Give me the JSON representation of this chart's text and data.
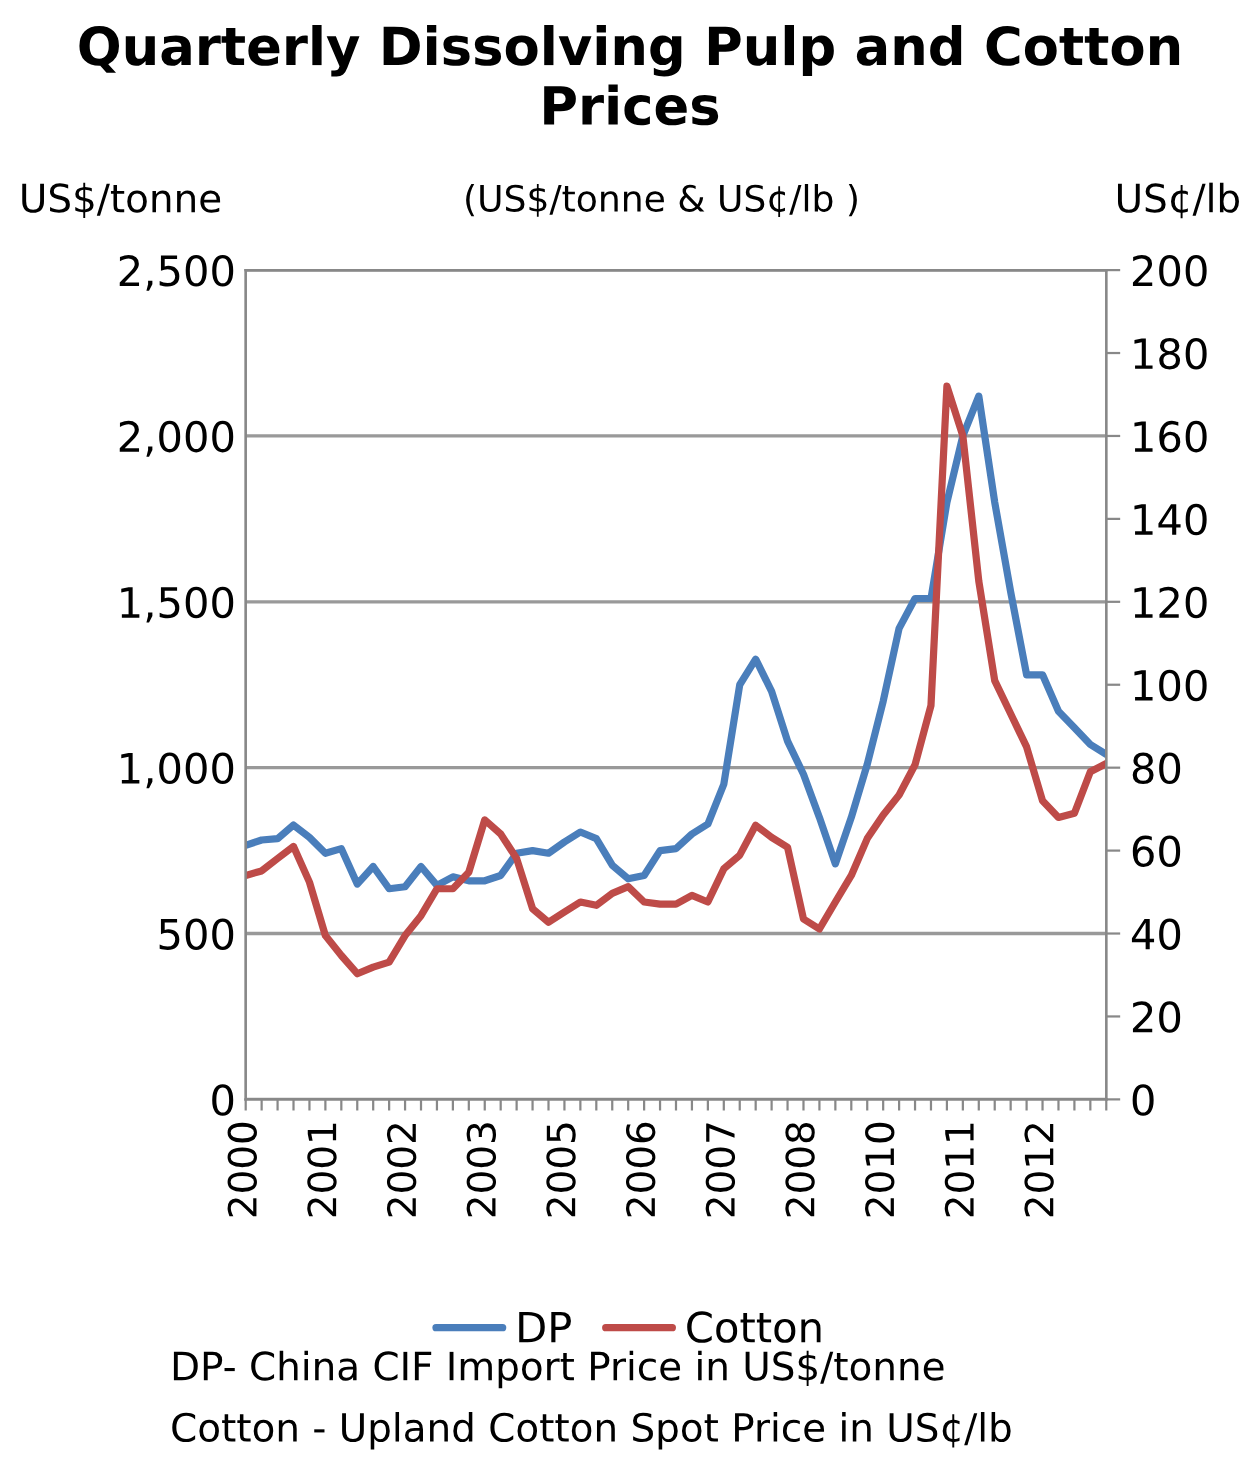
{
  "chart_data": {
    "type": "line",
    "title": "Quarterly Dissolving Pulp and Cotton Prices",
    "subtitle": "(US$/tonne & US¢/lb )",
    "ylabel": "US$/tonne",
    "y2label": "US¢/lb",
    "categories": [
      "2000",
      null,
      null,
      null,
      null,
      "2001",
      null,
      null,
      null,
      null,
      "2002",
      null,
      null,
      null,
      null,
      "2003",
      null,
      null,
      null,
      null,
      "2005",
      null,
      null,
      null,
      null,
      "2006",
      null,
      null,
      null,
      null,
      "2007",
      null,
      null,
      null,
      null,
      "2008",
      null,
      null,
      null,
      null,
      "2010",
      null,
      null,
      null,
      null,
      "2011",
      null,
      null,
      null,
      null,
      "2012",
      null,
      null,
      null,
      null
    ],
    "series": [
      {
        "name": "DP",
        "color": "#4a7ebb",
        "values": [
          766,
          782,
          786,
          827,
          790,
          742,
          756,
          649,
          702,
          635,
          641,
          702,
          645,
          671,
          659,
          659,
          675,
          742,
          750,
          742,
          776,
          806,
          786,
          706,
          665,
          675,
          750,
          756,
          800,
          830,
          950,
          1250,
          1327,
          1230,
          1080,
          980,
          850,
          710,
          850,
          1010,
          1200,
          1420,
          1510,
          1510,
          1800,
          2000,
          2120,
          1800,
          1530,
          1280,
          1280,
          1170,
          1120,
          1070,
          1040
        ]
      },
      {
        "name": "Cotton",
        "color": "#be4b48",
        "axis": "y2",
        "values": [
          54.0,
          55.1,
          58.1,
          61.0,
          52.4,
          39.5,
          34.7,
          30.3,
          31.9,
          33.1,
          39.5,
          44.3,
          50.8,
          50.8,
          54.8,
          67.4,
          64.0,
          58.1,
          46.0,
          42.7,
          45.2,
          47.6,
          46.8,
          49.7,
          51.3,
          47.6,
          47.1,
          47.1,
          49.2,
          47.6,
          55.6,
          58.9,
          66.1,
          63.2,
          60.8,
          43.5,
          41.1,
          47.6,
          54.0,
          62.9,
          68.6,
          73.4,
          80.7,
          95,
          172,
          160,
          125,
          101,
          93,
          85,
          72,
          68,
          69,
          79,
          81
        ]
      }
    ],
    "ylim": [
      0,
      2500
    ],
    "yticks": [
      0,
      500,
      {
        "value": 1000,
        "label": "1,000"
      },
      {
        "value": 1500,
        "label": "1,500"
      },
      {
        "value": 2000,
        "label": "2,000"
      },
      {
        "value": 2500,
        "label": "2,500"
      }
    ],
    "y2lim": [
      0,
      200
    ],
    "y2ticks": [
      0,
      20,
      40,
      60,
      80,
      100,
      120,
      140,
      160,
      180,
      200
    ],
    "grid": "y",
    "legend": "bottom",
    "line_style": "solid",
    "marker": "none",
    "annotations": [
      "DP- China CIF Import Price in US$/tonne",
      "Cotton - Upland Cotton Spot Price in US¢/lb"
    ]
  }
}
